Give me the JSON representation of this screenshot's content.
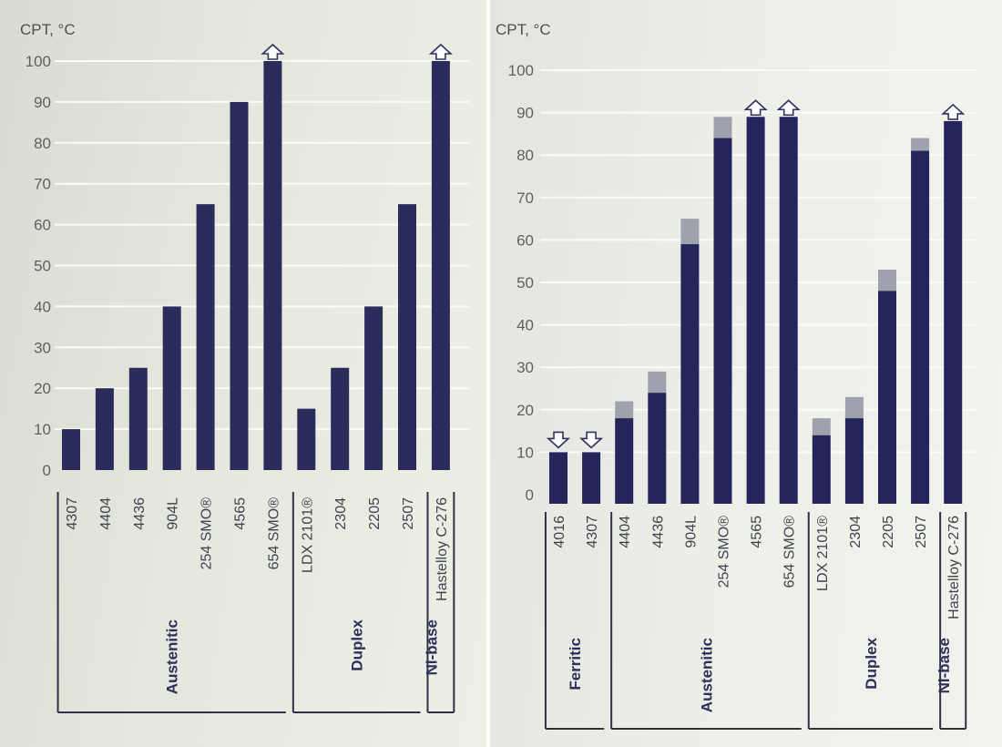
{
  "chart_data": [
    {
      "type": "bar",
      "ylabel": "CPT, °C",
      "ylim": [
        0,
        100
      ],
      "yticks": [
        0,
        10,
        20,
        30,
        40,
        50,
        60,
        70,
        80,
        90,
        100
      ],
      "categories": [
        "4307",
        "4404",
        "4436",
        "904L",
        "254 SMO®",
        "4565",
        "654 SMO®",
        "LDX 2101®",
        "2304",
        "2205",
        "2507",
        "Hastelloy C-276"
      ],
      "values": [
        10,
        20,
        25,
        40,
        65,
        90,
        100,
        15,
        25,
        40,
        65,
        100
      ],
      "exceeds": [
        false,
        false,
        false,
        false,
        false,
        false,
        true,
        false,
        false,
        false,
        false,
        true
      ],
      "groups": [
        {
          "name": "Austenitic",
          "start": 0,
          "end": 6
        },
        {
          "name": "Duplex",
          "start": 7,
          "end": 10
        },
        {
          "name": "Ni-base",
          "start": 11,
          "end": 11
        }
      ],
      "colors": {
        "bar": "#2b2b5c"
      }
    },
    {
      "type": "bar",
      "ylabel": "CPT, °C",
      "ylim": [
        0,
        100
      ],
      "yticks": [
        0,
        10,
        20,
        30,
        40,
        50,
        60,
        70,
        80,
        90,
        100
      ],
      "categories": [
        "4016",
        "4307",
        "4404",
        "4436",
        "904L",
        "254 SMO®",
        "4565",
        "654 SMO®",
        "LDX 2101®",
        "2304",
        "2205",
        "2507",
        "Hastelloy C-276"
      ],
      "values": [
        10,
        10,
        18,
        24,
        59,
        84,
        89,
        89,
        14,
        18,
        48,
        81,
        88
      ],
      "upper": [
        null,
        null,
        22,
        29,
        65,
        89,
        null,
        null,
        18,
        23,
        53,
        84,
        null
      ],
      "exceeds": [
        false,
        false,
        false,
        false,
        false,
        false,
        true,
        true,
        false,
        false,
        false,
        false,
        true
      ],
      "below": [
        true,
        true,
        false,
        false,
        false,
        false,
        false,
        false,
        false,
        false,
        false,
        false,
        false
      ],
      "groups": [
        {
          "name": "Ferritic",
          "start": 0,
          "end": 1
        },
        {
          "name": "Austenitic",
          "start": 2,
          "end": 7
        },
        {
          "name": "Duplex",
          "start": 8,
          "end": 11
        },
        {
          "name": "Ni-base",
          "start": 12,
          "end": 12
        }
      ],
      "colors": {
        "bar": "#24255a",
        "range": "#9fa2ad"
      }
    }
  ]
}
